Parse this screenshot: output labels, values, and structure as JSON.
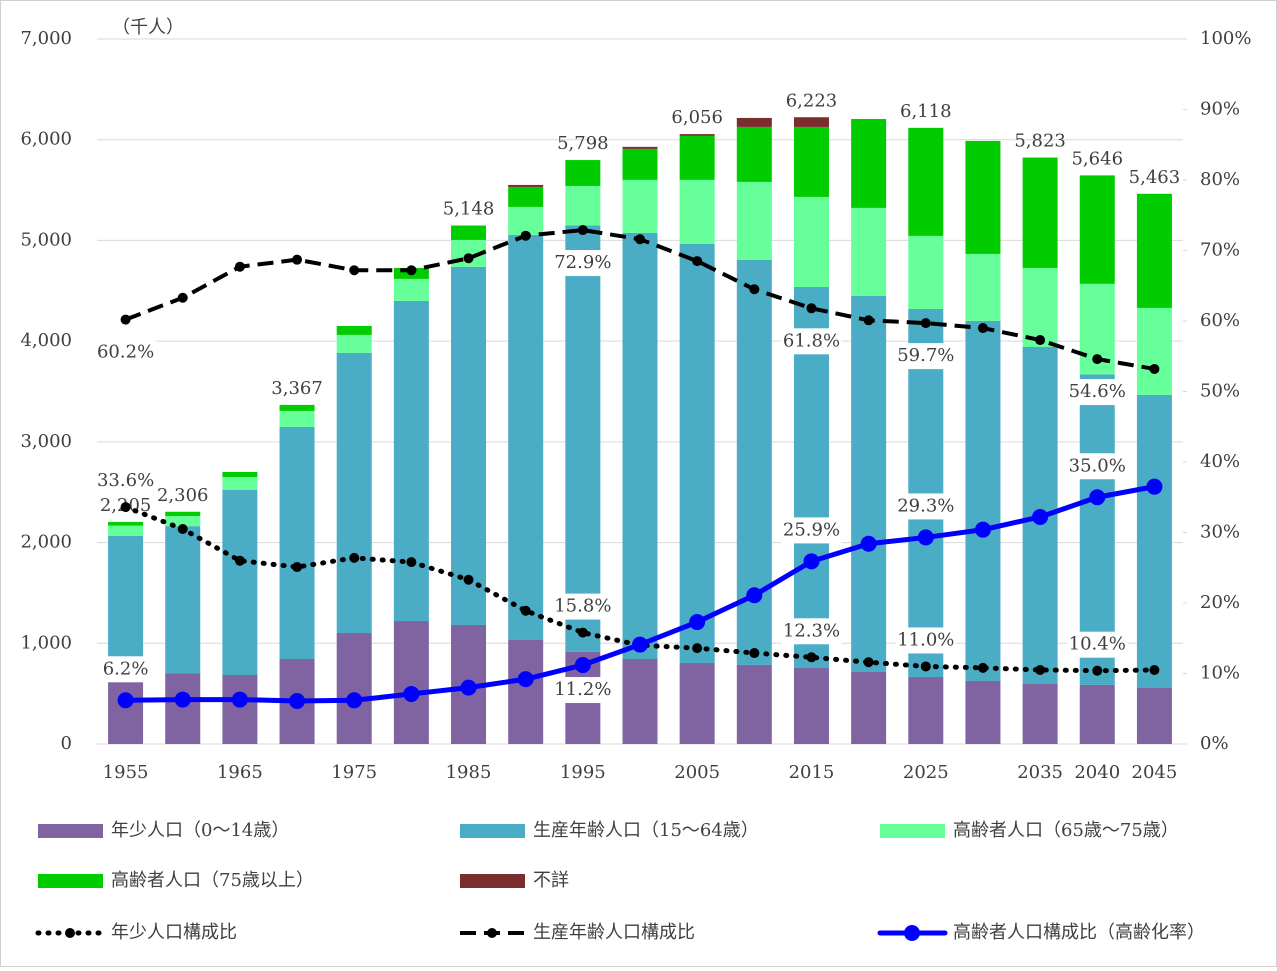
{
  "chart_data": {
    "type": "bar",
    "stacked": true,
    "y_unit": "（千人）",
    "categories": [
      "1955",
      null,
      "1965",
      null,
      "1975",
      null,
      "1985",
      null,
      "1995",
      null,
      "2005",
      null,
      "2015",
      null,
      "2025",
      null,
      "2035",
      "2040",
      "2045"
    ],
    "ylim": [
      0,
      7000
    ],
    "yticks": [
      0,
      {
        "value": 1000,
        "label": "1,000"
      },
      {
        "value": 2000,
        "label": "2,000"
      },
      {
        "value": 3000,
        "label": "3,000"
      },
      {
        "value": 4000,
        "label": "4,000"
      },
      {
        "value": 5000,
        "label": "5,000"
      },
      {
        "value": 6000,
        "label": "6,000"
      },
      {
        "value": 7000,
        "label": "7,000"
      }
    ],
    "y2lim": [
      0,
      100
    ],
    "y2ticks": [
      {
        "value": 0,
        "label": "0%"
      },
      {
        "value": 10,
        "label": "10%"
      },
      {
        "value": 20,
        "label": "20%"
      },
      {
        "value": 30,
        "label": "30%"
      },
      {
        "value": 40,
        "label": "40%"
      },
      {
        "value": 50,
        "label": "50%"
      },
      {
        "value": 60,
        "label": "60%"
      },
      {
        "value": 70,
        "label": "70%"
      },
      {
        "value": 80,
        "label": "80%"
      },
      {
        "value": 90,
        "label": "90%"
      },
      {
        "value": 100,
        "label": "100%"
      }
    ],
    "grid": true,
    "totals": [
      2205,
      2306,
      null,
      3367,
      null,
      null,
      5148,
      null,
      5798,
      null,
      6056,
      null,
      6223,
      null,
      6118,
      null,
      5823,
      5646,
      5463
    ],
    "total_labels": [
      "2,205",
      "2,306",
      null,
      "3,367",
      null,
      null,
      "5,148",
      null,
      "5,798",
      null,
      "6,056",
      null,
      "6,223",
      null,
      "6,118",
      null,
      "5,823",
      "5,646",
      "5,463"
    ],
    "series": [
      {
        "name": "年少人口（0～14歳）",
        "color": "#8064a2",
        "values": [
          741,
          703,
          685,
          844,
          1102,
          1221,
          1182,
          1033,
          914,
          844,
          804,
          785,
          755,
          715,
          665,
          626,
          596,
          587,
          556
        ]
      },
      {
        "name": "生産年齢人口（15～64歳）",
        "color": "#4bacc6",
        "values": [
          1327,
          1460,
          1837,
          2304,
          2781,
          3178,
          3555,
          4022,
          4235,
          4231,
          4161,
          4021,
          3783,
          3734,
          3655,
          3575,
          3346,
          3083,
          2910
        ]
      },
      {
        "name": "高齢者人口（65歳～75歳）",
        "color": "#66ff99",
        "values": [
          100,
          100,
          129,
          159,
          179,
          219,
          268,
          278,
          392,
          526,
          636,
          775,
          894,
          874,
          725,
          665,
          785,
          899,
          864
        ]
      },
      {
        "name": "高齢者人口（75歳以上）",
        "color": "#00cc00",
        "values": [
          37,
          43,
          50,
          60,
          89,
          109,
          143,
          198,
          257,
          308,
          437,
          546,
          695,
          883,
          1073,
          1122,
          1096,
          1077,
          1133
        ]
      },
      {
        "name": "不詳",
        "color": "#7b2c2c",
        "values": [
          null,
          null,
          null,
          null,
          null,
          null,
          null,
          20,
          null,
          20,
          18,
          89,
          96,
          null,
          null,
          null,
          null,
          null,
          null
        ]
      },
      {
        "name": "年少人口構成比",
        "type": "line",
        "axis": "y2",
        "color": "#000000",
        "style": "dotted",
        "values": [
          33.6,
          30.5,
          26.0,
          25.1,
          26.4,
          25.8,
          23.3,
          18.9,
          15.8,
          14.0,
          13.6,
          12.9,
          12.3,
          11.6,
          11.0,
          10.8,
          10.5,
          10.4,
          10.5
        ],
        "value_labels": [
          "33.6%",
          null,
          null,
          null,
          null,
          null,
          null,
          null,
          "15.8%",
          null,
          null,
          null,
          "12.3%",
          null,
          "11.0%",
          null,
          null,
          "10.4%",
          null
        ]
      },
      {
        "name": "生産年齢人口構成比",
        "type": "line",
        "axis": "y2",
        "color": "#000000",
        "style": "dashed",
        "values": [
          60.2,
          63.3,
          67.7,
          68.7,
          67.2,
          67.2,
          68.9,
          72.1,
          72.9,
          71.6,
          68.5,
          64.5,
          61.8,
          60.1,
          59.7,
          59.0,
          57.3,
          54.6,
          53.2
        ],
        "value_labels": [
          "60.2%",
          null,
          null,
          null,
          null,
          null,
          null,
          null,
          "72.9%",
          null,
          null,
          null,
          "61.8%",
          null,
          "59.7%",
          null,
          null,
          "54.6%",
          null
        ]
      },
      {
        "name": "高齢者人口構成比（高齢化率）",
        "type": "line",
        "axis": "y2",
        "color": "#0000ff",
        "style": "solid",
        "values": [
          6.2,
          6.3,
          6.3,
          6.1,
          6.2,
          7.1,
          8.0,
          9.2,
          11.2,
          14.1,
          17.3,
          21.1,
          25.9,
          28.4,
          29.3,
          30.4,
          32.2,
          35.0,
          36.5
        ],
        "value_labels": [
          "6.2%",
          null,
          null,
          null,
          null,
          null,
          null,
          null,
          "11.2%",
          null,
          null,
          null,
          "25.9%",
          null,
          "29.3%",
          null,
          null,
          "35.0%",
          null
        ]
      }
    ]
  }
}
